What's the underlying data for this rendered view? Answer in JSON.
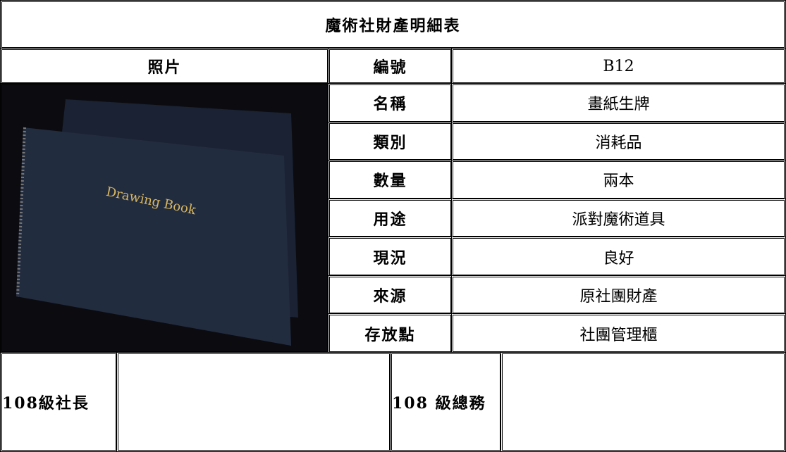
{
  "title": "魔術社財產明細表",
  "photo_header": "照片",
  "photo": {
    "caption": "Drawing Book"
  },
  "fields": [
    {
      "label": "編號",
      "value": "B12"
    },
    {
      "label": "名稱",
      "value": "畫紙生牌"
    },
    {
      "label": "類別",
      "value": "消耗品"
    },
    {
      "label": "數量",
      "value": "兩本"
    },
    {
      "label": "用途",
      "value": "派對魔術道具"
    },
    {
      "label": "現況",
      "value": "良好"
    },
    {
      "label": "來源",
      "value": "原社團財產"
    },
    {
      "label": "存放點",
      "value": "社團管理櫃"
    }
  ],
  "signatures": [
    {
      "label": "108級社長"
    },
    {
      "label": "108 級總務"
    }
  ]
}
